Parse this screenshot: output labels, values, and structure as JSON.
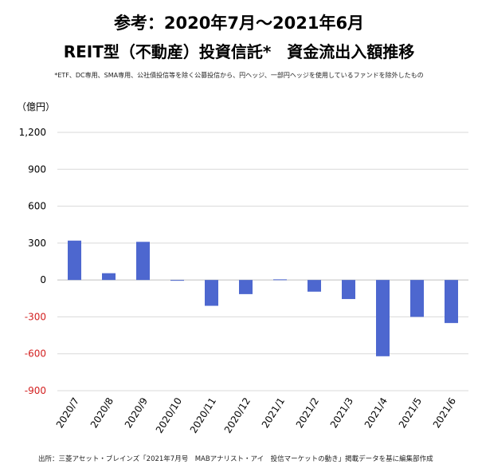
{
  "title_line1": "参考：2020年7月〜2021年6月",
  "title_line2": "REIT型（不動産）投資信託*　資金流出入額推移",
  "note": "*ETF、DC専用、SMA専用、公社債投信等を除く公募投信から、円ヘッジ、一部円ヘッジを使用しているファンドを除外したもの",
  "unit_label": "（億円）",
  "source": "出所：三菱アセット・ブレインズ「2021年7月号　MABアナリスト・アイ　投信マーケットの動き」掲載データを基に編集部作成",
  "colors": {
    "bar": "#4d67cf",
    "negative_tick": "#d32020",
    "grid": "#d9d9d9"
  },
  "chart_data": {
    "type": "bar",
    "categories": [
      "2020/7",
      "2020/8",
      "2020/9",
      "2020/10",
      "2020/11",
      "2020/12",
      "2021/1",
      "2021/2",
      "2021/3",
      "2021/4",
      "2021/5",
      "2021/6"
    ],
    "values": [
      320,
      55,
      310,
      -3,
      -210,
      -115,
      5,
      -95,
      -155,
      -620,
      -300,
      -350
    ],
    "ylim": [
      -900,
      1200
    ],
    "yticks": [
      1200,
      900,
      600,
      300,
      0,
      -300,
      -600,
      -900
    ],
    "ytick_labels": [
      "1,200",
      "900",
      "600",
      "300",
      "0",
      "-300",
      "-600",
      "-900"
    ],
    "grid": true
  }
}
